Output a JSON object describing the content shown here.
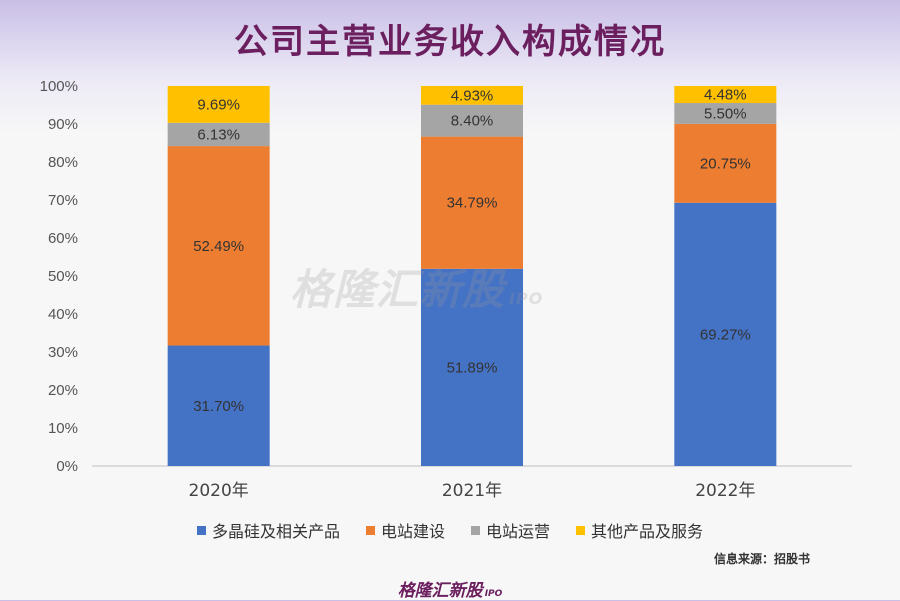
{
  "title": "公司主营业务收入构成情况",
  "watermark": {
    "text": "格隆汇新股",
    "ipo": "IPO"
  },
  "source": "信息来源：招股书",
  "footer_logo": {
    "text": "格隆汇新股",
    "ipo": "IPO"
  },
  "colors": {
    "series": [
      "#4472c4",
      "#ed7d31",
      "#a5a5a5",
      "#ffc000"
    ]
  },
  "chart_data": {
    "type": "bar",
    "stacked": true,
    "categories": [
      "2020年",
      "2021年",
      "2022年"
    ],
    "yticks": [
      "0%",
      "10%",
      "20%",
      "30%",
      "40%",
      "50%",
      "60%",
      "70%",
      "80%",
      "90%",
      "100%"
    ],
    "ylim": [
      0,
      100
    ],
    "legend_position": "bottom",
    "series": [
      {
        "name": "多晶硅及相关产品",
        "values": [
          31.7,
          51.89,
          69.27
        ],
        "labels": [
          "31.70%",
          "51.89%",
          "69.27%"
        ]
      },
      {
        "name": "电站建设",
        "values": [
          52.49,
          34.79,
          20.75
        ],
        "labels": [
          "52.49%",
          "34.79%",
          "20.75%"
        ]
      },
      {
        "name": "电站运营",
        "values": [
          6.13,
          8.4,
          5.5
        ],
        "labels": [
          "6.13%",
          "8.40%",
          "5.50%"
        ]
      },
      {
        "name": "其他产品及服务",
        "values": [
          9.69,
          4.93,
          4.48
        ],
        "labels": [
          "9.69%",
          "4.93%",
          "4.48%"
        ]
      }
    ]
  }
}
